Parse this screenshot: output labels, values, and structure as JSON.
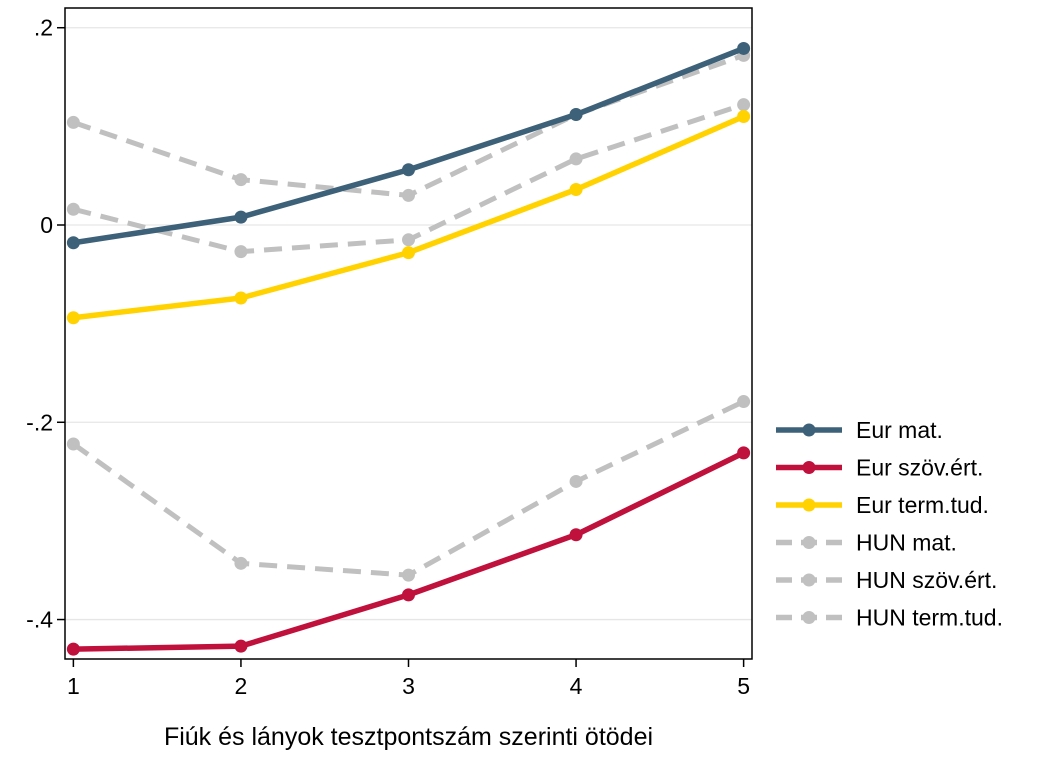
{
  "chart_data": {
    "type": "line",
    "title": "",
    "xlabel": "Fiúk és lányok tesztpontszám szerinti ötödei",
    "ylabel": "",
    "x": [
      1,
      2,
      3,
      4,
      5
    ],
    "xlim": [
      0.95,
      5.05
    ],
    "ylim": [
      -0.44,
      0.22
    ],
    "x_ticks": [
      1,
      2,
      3,
      4,
      5
    ],
    "x_tick_labels": [
      "1",
      "2",
      "3",
      "4",
      "5"
    ],
    "y_ticks": [
      0.2,
      0,
      -0.2,
      -0.4
    ],
    "y_tick_labels": [
      ".2",
      "0",
      "-.2",
      "-.4"
    ],
    "grid": true,
    "legend_position": "right",
    "series": [
      {
        "name": "Eur mat.",
        "values": [
          -0.018,
          0.008,
          0.056,
          0.112,
          0.179
        ],
        "color": "#3d6179",
        "style": "solid"
      },
      {
        "name": "Eur szöv.ért.",
        "values": [
          -0.43,
          -0.427,
          -0.375,
          -0.314,
          -0.231
        ],
        "color": "#c0103c",
        "style": "solid"
      },
      {
        "name": "Eur term.tud.",
        "values": [
          -0.094,
          -0.074,
          -0.028,
          0.036,
          0.11
        ],
        "color": "#ffd200",
        "style": "solid"
      },
      {
        "name": "HUN mat.",
        "values": [
          0.104,
          0.046,
          0.03,
          0.112,
          0.172
        ],
        "color": "#c0c0c0",
        "style": "dashed"
      },
      {
        "name": "HUN szöv.ért.",
        "values": [
          -0.222,
          -0.343,
          -0.355,
          -0.26,
          -0.179
        ],
        "color": "#c0c0c0",
        "style": "dashed"
      },
      {
        "name": "HUN term.tud.",
        "values": [
          0.016,
          -0.027,
          -0.015,
          0.067,
          0.122
        ],
        "color": "#c0c0c0",
        "style": "dashed"
      }
    ]
  }
}
